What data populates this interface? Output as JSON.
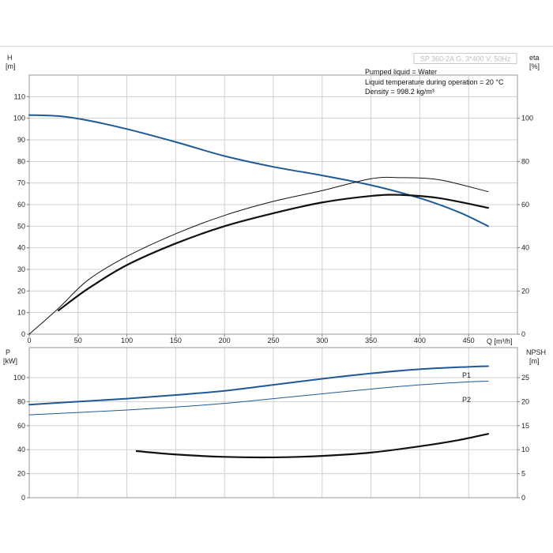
{
  "chart_data": {
    "type": "line",
    "title": "SP 360-2A G, 3*400 V, 50Hz",
    "notes": [
      "Pumped liquid = Water",
      "Liquid temperature during operation = 20 °C",
      "Density = 998.2 kg/m³"
    ],
    "colors": {
      "blue": "#1f5a96",
      "black": "#111111",
      "grid": "#d0d0d0"
    },
    "upper": {
      "ylabel_left": [
        "H",
        "[m]"
      ],
      "ylabel_right": [
        "eta",
        "[%]"
      ],
      "xlabel": "Q [m³/h]",
      "xlim": [
        0,
        500
      ],
      "ylim_left": [
        0,
        120
      ],
      "yticks_left": [
        0,
        10,
        20,
        30,
        40,
        50,
        60,
        70,
        80,
        90,
        100,
        110
      ],
      "ylim_right": [
        0,
        120
      ],
      "yticks_right": [
        0,
        20,
        40,
        60,
        80,
        100
      ],
      "xticks": [
        0,
        50,
        100,
        150,
        200,
        250,
        300,
        350,
        400,
        450
      ],
      "series": [
        {
          "axis": "left",
          "color": "#1f5a96",
          "width": 2,
          "x": [
            0,
            30,
            60,
            100,
            150,
            200,
            250,
            300,
            350,
            400,
            440,
            470
          ],
          "y": [
            101.5,
            101,
            99,
            95,
            89,
            82.5,
            77.5,
            73.5,
            69,
            63,
            56.5,
            50
          ]
        },
        {
          "axis": "right",
          "color": "#111111",
          "width": 1,
          "x": [
            0,
            30,
            60,
            100,
            150,
            200,
            250,
            300,
            350,
            380,
            420,
            470
          ],
          "y": [
            0,
            12,
            25,
            36,
            46.5,
            55,
            61.5,
            66.5,
            72,
            72.5,
            71.5,
            66
          ]
        },
        {
          "axis": "right",
          "color": "#111111",
          "width": 2.2,
          "x": [
            30,
            60,
            100,
            150,
            200,
            250,
            300,
            350,
            380,
            420,
            470
          ],
          "y": [
            11,
            21,
            32,
            42,
            50,
            56,
            61,
            64,
            64.5,
            63,
            58.5
          ]
        }
      ]
    },
    "lower": {
      "ylabel_left": [
        "P",
        "[kW]"
      ],
      "ylabel_right": [
        "NPSH",
        "[m]"
      ],
      "xlim": [
        0,
        500
      ],
      "ylim_left": [
        0,
        125
      ],
      "yticks_left": [
        0,
        20,
        40,
        60,
        80,
        100
      ],
      "ylim_right": [
        0,
        31.25
      ],
      "yticks_right": [
        0,
        5,
        10,
        15,
        20,
        25
      ],
      "xticks": [
        0,
        50,
        100,
        150,
        200,
        250,
        300,
        350,
        400,
        450
      ],
      "series": [
        {
          "name": "P1",
          "axis": "left",
          "color": "#1f5a96",
          "width": 2,
          "x": [
            0,
            50,
            100,
            150,
            200,
            250,
            300,
            350,
            400,
            450,
            470
          ],
          "y": [
            77.5,
            80,
            82.5,
            85.5,
            89,
            94,
            99,
            103.5,
            107,
            109,
            109.5
          ]
        },
        {
          "name": "P2",
          "axis": "left",
          "color": "#1f5a96",
          "width": 1,
          "x": [
            0,
            50,
            100,
            150,
            200,
            250,
            300,
            350,
            400,
            450,
            470
          ],
          "y": [
            69,
            71,
            73,
            75.5,
            78.5,
            82.5,
            86.5,
            90.5,
            94,
            96.5,
            97
          ]
        },
        {
          "axis": "right",
          "color": "#111111",
          "width": 2.2,
          "x": [
            110,
            150,
            200,
            250,
            300,
            350,
            400,
            440,
            470
          ],
          "y": [
            9.7,
            9.0,
            8.5,
            8.4,
            8.7,
            9.4,
            10.7,
            12.0,
            13.3
          ]
        }
      ]
    }
  }
}
